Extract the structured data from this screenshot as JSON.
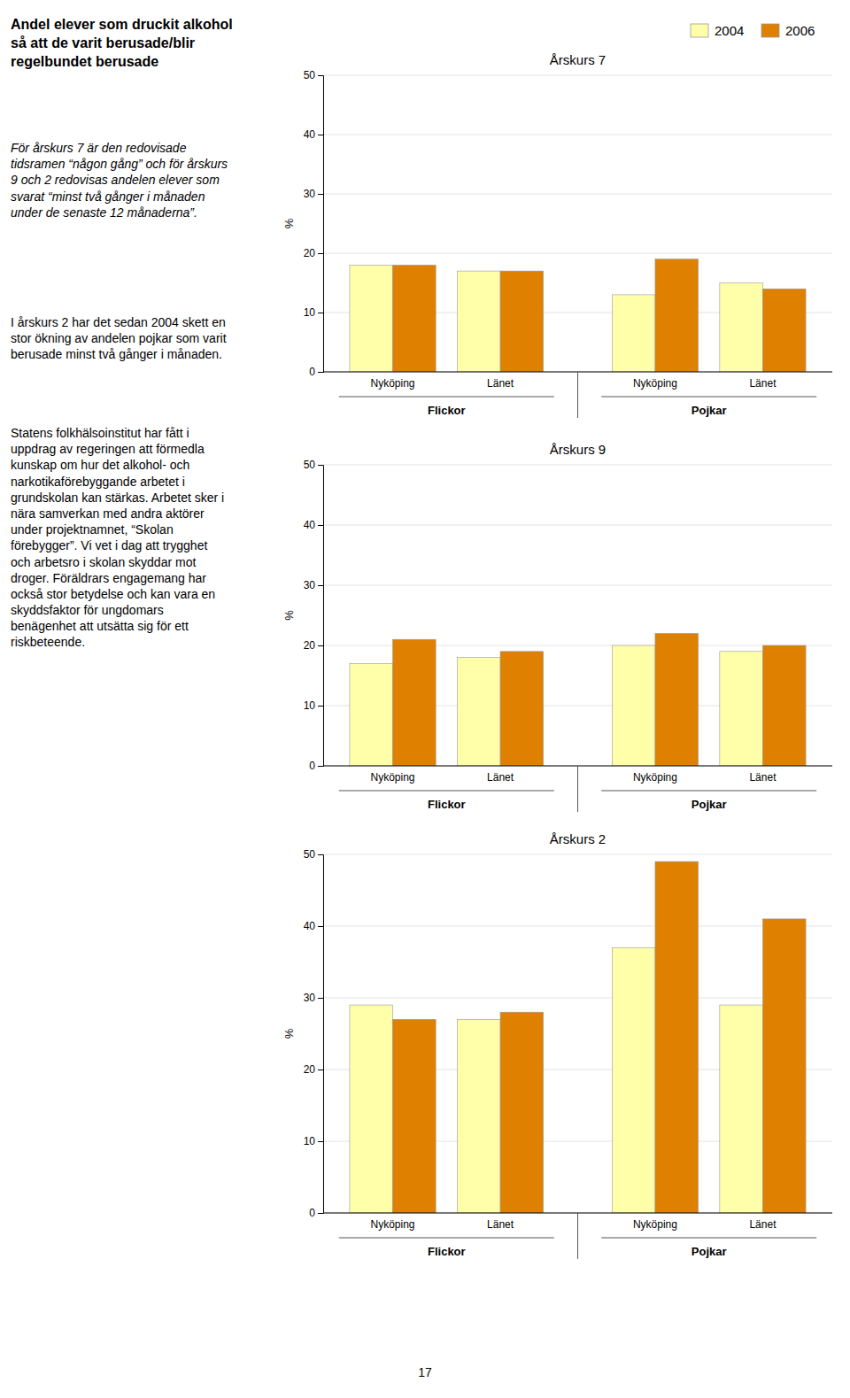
{
  "chart_data": [
    {
      "type": "bar",
      "title": "Årskurs 7",
      "ylabel": "%",
      "categories": [
        "Nyköping",
        "Länet",
        "Nyköping",
        "Länet"
      ],
      "groups": [
        "Flickor",
        "Pojkar"
      ],
      "series": [
        {
          "name": "2004",
          "color": "#FFFFAA",
          "values": [
            18,
            17,
            13,
            15
          ]
        },
        {
          "name": "2006",
          "color": "#E08000",
          "values": [
            18,
            17,
            19,
            14
          ]
        }
      ],
      "ylim": [
        0,
        50
      ],
      "yticks": [
        0,
        10,
        20,
        30,
        40,
        50
      ],
      "grid": true,
      "legend": "top-right"
    },
    {
      "type": "bar",
      "title": "Årskurs 9",
      "ylabel": "%",
      "categories": [
        "Nyköping",
        "Länet",
        "Nyköping",
        "Länet"
      ],
      "groups": [
        "Flickor",
        "Pojkar"
      ],
      "series": [
        {
          "name": "2004",
          "color": "#FFFFAA",
          "values": [
            17,
            18,
            20,
            19
          ]
        },
        {
          "name": "2006",
          "color": "#E08000",
          "values": [
            21,
            19,
            22,
            20
          ]
        }
      ],
      "ylim": [
        0,
        50
      ],
      "yticks": [
        0,
        10,
        20,
        30,
        40,
        50
      ],
      "grid": true
    },
    {
      "type": "bar",
      "title": "Årskurs 2",
      "ylabel": "%",
      "categories": [
        "Nyköping",
        "Länet",
        "Nyköping",
        "Länet"
      ],
      "groups": [
        "Flickor",
        "Pojkar"
      ],
      "series": [
        {
          "name": "2004",
          "color": "#FFFFAA",
          "values": [
            29,
            27,
            37,
            29
          ]
        },
        {
          "name": "2006",
          "color": "#E08000",
          "values": [
            27,
            28,
            49,
            41
          ]
        }
      ],
      "ylim": [
        0,
        50
      ],
      "yticks": [
        0,
        10,
        20,
        30,
        40,
        50
      ],
      "grid": true
    }
  ],
  "texts": [
    "Andel elever som druckit alkohol\nså att de varit berusade/blir\nregelbundet berusade",
    "För årskurs 7 är den redovisade\ntidsramen “någon gång” och för årskurs\n9 och 2 redovisas andelen elever som\nsvarat “minst två gånger i månaden\nunder de senaste 12 månaderna”.",
    "I årskurs 2 har det sedan 2004 skett en\nstor ökning av andelen pojkar som varit\nberusade minst två gånger i månaden.",
    "Statens folkhälsoinstitut har fått i\nuppdrag av regeringen att förmedla\nkunskap om hur det alkohol- och\nnarkotikaförebyggande arbetet i\ngrundskolan kan stärkas. Arbetet sker i\nnära samverkan med andra aktörer\nunder projektnamnet, “Skolan\nförebygger”. Vi vet i dag att trygghet\noch arbetsro i skolan skyddar mot\ndroger. Föräldrars engagemang har\nockså stor betydelse och kan vara en\nskyddsfaktor för ungdomars\nbenägenhet att utsätta sig för ett\nriskbeteende."
  ],
  "page_number": "17"
}
